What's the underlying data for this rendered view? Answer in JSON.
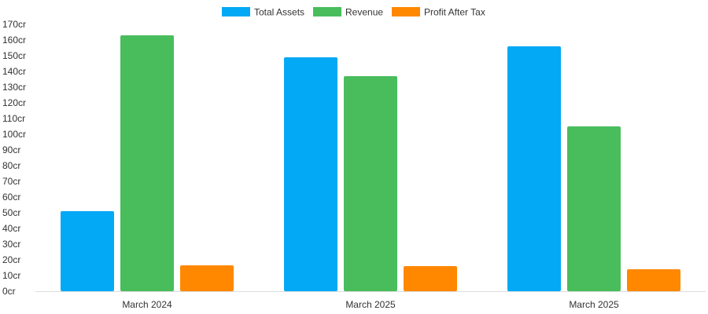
{
  "chart_data": {
    "type": "bar",
    "categories": [
      "March 2024",
      "March 2025",
      "March 2025"
    ],
    "series": [
      {
        "name": "Total Assets",
        "color": "#03a9f4",
        "values": [
          51,
          149,
          156
        ]
      },
      {
        "name": "Revenue",
        "color": "#49bd5c",
        "values": [
          163,
          137,
          105
        ]
      },
      {
        "name": "Profit After Tax",
        "color": "#ff8800",
        "values": [
          16.5,
          16,
          14
        ]
      }
    ],
    "ylim": [
      0,
      170
    ],
    "ytick_step": 10,
    "ytick_suffix": "cr",
    "ytick_labels": [
      "0cr",
      "10cr",
      "20cr",
      "30cr",
      "40cr",
      "50cr",
      "60cr",
      "70cr",
      "80cr",
      "90cr",
      "100cr",
      "110cr",
      "120cr",
      "130cr",
      "140cr",
      "150cr",
      "160cr",
      "170cr"
    ],
    "legend_position": "top-center",
    "grid": false
  }
}
